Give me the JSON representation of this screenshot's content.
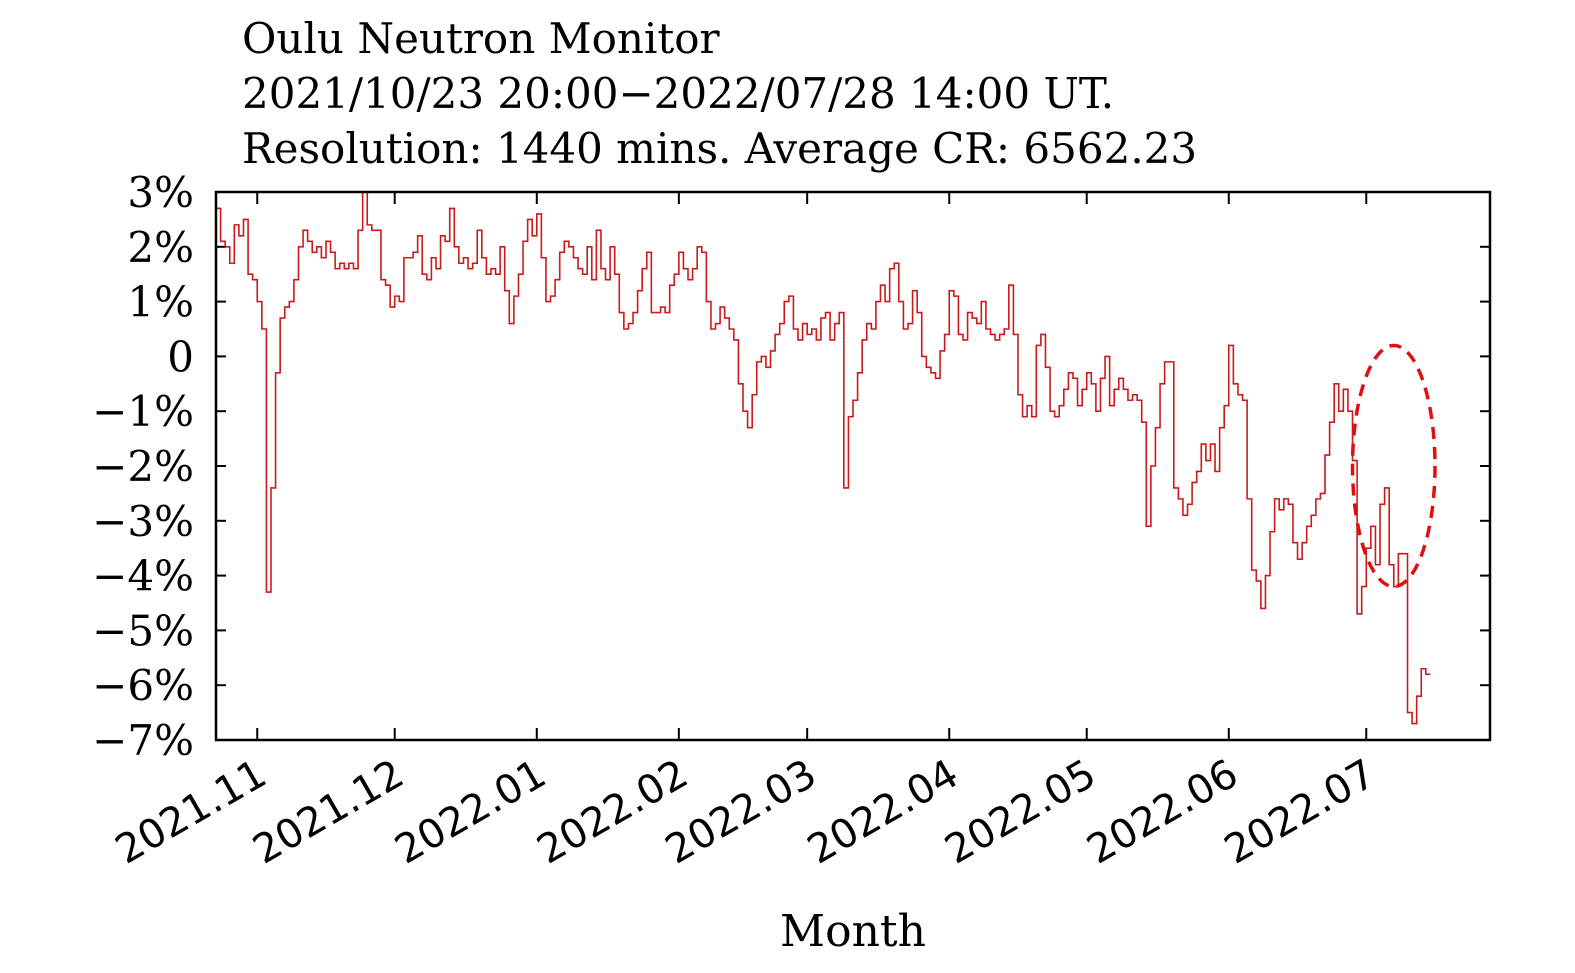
{
  "chart_data": {
    "type": "line",
    "title_lines": [
      "Oulu Neutron Monitor",
      "2021/10/23 20:00−2022/07/28 14:00 UT.",
      "Resolution: 1440 mins. Average CR: 6562.23"
    ],
    "xlabel": "Month",
    "ylabel": "",
    "ylim": [
      -7,
      3
    ],
    "x_range": [
      "2021-10-23",
      "2022-07-28"
    ],
    "yticks": [
      3,
      2,
      1,
      0,
      -1,
      -2,
      -3,
      -4,
      -5,
      -6,
      -7
    ],
    "ytick_labels": [
      "3%",
      "2%",
      "1%",
      "0",
      "−1%",
      "−2%",
      "−3%",
      "−4%",
      "−5%",
      "−6%",
      "−7%"
    ],
    "xticks": [
      {
        "date": "2021-11-01",
        "label": "2021.11"
      },
      {
        "date": "2021-12-01",
        "label": "2021.12"
      },
      {
        "date": "2022-01-01",
        "label": "2022.01"
      },
      {
        "date": "2022-02-01",
        "label": "2022.02"
      },
      {
        "date": "2022-03-01",
        "label": "2022.03"
      },
      {
        "date": "2022-04-01",
        "label": "2022.04"
      },
      {
        "date": "2022-05-01",
        "label": "2022.05"
      },
      {
        "date": "2022-06-01",
        "label": "2022.06"
      },
      {
        "date": "2022-07-01",
        "label": "2022.07"
      }
    ],
    "grid": false,
    "line_color": "#cc1a1a",
    "series": [
      {
        "name": "",
        "points": [
          [
            "2021-10-23",
            2.7
          ],
          [
            "2021-10-24",
            2.1
          ],
          [
            "2021-10-25",
            2.0
          ],
          [
            "2021-10-26",
            1.7
          ],
          [
            "2021-10-27",
            2.4
          ],
          [
            "2021-10-28",
            2.2
          ],
          [
            "2021-10-29",
            2.5
          ],
          [
            "2021-10-30",
            1.5
          ],
          [
            "2021-10-31",
            1.4
          ],
          [
            "2021-11-01",
            1.0
          ],
          [
            "2021-11-02",
            0.5
          ],
          [
            "2021-11-03",
            -4.3
          ],
          [
            "2021-11-04",
            -2.4
          ],
          [
            "2021-11-05",
            -0.3
          ],
          [
            "2021-11-06",
            0.7
          ],
          [
            "2021-11-07",
            0.9
          ],
          [
            "2021-11-08",
            1.0
          ],
          [
            "2021-11-09",
            1.4
          ],
          [
            "2021-11-10",
            2.0
          ],
          [
            "2021-11-11",
            2.3
          ],
          [
            "2021-11-12",
            2.1
          ],
          [
            "2021-11-13",
            1.9
          ],
          [
            "2021-11-14",
            2.0
          ],
          [
            "2021-11-15",
            1.8
          ],
          [
            "2021-11-16",
            2.1
          ],
          [
            "2021-11-17",
            1.9
          ],
          [
            "2021-11-18",
            1.6
          ],
          [
            "2021-11-19",
            1.7
          ],
          [
            "2021-11-20",
            1.6
          ],
          [
            "2021-11-21",
            1.7
          ],
          [
            "2021-11-22",
            1.6
          ],
          [
            "2021-11-23",
            2.3
          ],
          [
            "2021-11-24",
            3.0
          ],
          [
            "2021-11-25",
            2.4
          ],
          [
            "2021-11-26",
            2.3
          ],
          [
            "2021-11-27",
            2.3
          ],
          [
            "2021-11-28",
            1.4
          ],
          [
            "2021-11-29",
            1.3
          ],
          [
            "2021-11-30",
            0.9
          ],
          [
            "2021-12-01",
            1.1
          ],
          [
            "2021-12-02",
            1.0
          ],
          [
            "2021-12-03",
            1.8
          ],
          [
            "2021-12-04",
            1.8
          ],
          [
            "2021-12-05",
            1.9
          ],
          [
            "2021-12-06",
            2.2
          ],
          [
            "2021-12-07",
            1.5
          ],
          [
            "2021-12-08",
            1.4
          ],
          [
            "2021-12-09",
            1.8
          ],
          [
            "2021-12-10",
            1.6
          ],
          [
            "2021-12-11",
            2.2
          ],
          [
            "2021-12-12",
            2.1
          ],
          [
            "2021-12-13",
            2.7
          ],
          [
            "2021-12-14",
            2.0
          ],
          [
            "2021-12-15",
            1.7
          ],
          [
            "2021-12-16",
            1.8
          ],
          [
            "2021-12-17",
            1.6
          ],
          [
            "2021-12-18",
            1.7
          ],
          [
            "2021-12-19",
            2.3
          ],
          [
            "2021-12-20",
            1.8
          ],
          [
            "2021-12-21",
            1.5
          ],
          [
            "2021-12-22",
            1.6
          ],
          [
            "2021-12-23",
            1.5
          ],
          [
            "2021-12-24",
            2.0
          ],
          [
            "2021-12-25",
            1.2
          ],
          [
            "2021-12-26",
            0.6
          ],
          [
            "2021-12-27",
            1.1
          ],
          [
            "2021-12-28",
            1.5
          ],
          [
            "2021-12-29",
            2.1
          ],
          [
            "2021-12-30",
            2.5
          ],
          [
            "2021-12-31",
            2.2
          ],
          [
            "2022-01-01",
            2.6
          ],
          [
            "2022-01-02",
            1.8
          ],
          [
            "2022-01-03",
            1.0
          ],
          [
            "2022-01-04",
            1.1
          ],
          [
            "2022-01-05",
            1.4
          ],
          [
            "2022-01-06",
            1.9
          ],
          [
            "2022-01-07",
            2.1
          ],
          [
            "2022-01-08",
            2.0
          ],
          [
            "2022-01-09",
            1.8
          ],
          [
            "2022-01-10",
            1.6
          ],
          [
            "2022-01-11",
            1.5
          ],
          [
            "2022-01-12",
            2.0
          ],
          [
            "2022-01-13",
            1.4
          ],
          [
            "2022-01-14",
            2.3
          ],
          [
            "2022-01-15",
            1.6
          ],
          [
            "2022-01-16",
            1.4
          ],
          [
            "2022-01-17",
            2.0
          ],
          [
            "2022-01-18",
            1.5
          ],
          [
            "2022-01-19",
            0.8
          ],
          [
            "2022-01-20",
            0.5
          ],
          [
            "2022-01-21",
            0.6
          ],
          [
            "2022-01-22",
            0.8
          ],
          [
            "2022-01-23",
            1.2
          ],
          [
            "2022-01-24",
            1.6
          ],
          [
            "2022-01-25",
            1.9
          ],
          [
            "2022-01-26",
            0.8
          ],
          [
            "2022-01-27",
            0.8
          ],
          [
            "2022-01-28",
            0.9
          ],
          [
            "2022-01-29",
            0.8
          ],
          [
            "2022-01-30",
            1.3
          ],
          [
            "2022-01-31",
            1.5
          ],
          [
            "2022-02-01",
            1.9
          ],
          [
            "2022-02-02",
            1.6
          ],
          [
            "2022-02-03",
            1.4
          ],
          [
            "2022-02-04",
            1.6
          ],
          [
            "2022-02-05",
            2.0
          ],
          [
            "2022-02-06",
            1.9
          ],
          [
            "2022-02-07",
            1.0
          ],
          [
            "2022-02-08",
            0.5
          ],
          [
            "2022-02-09",
            0.6
          ],
          [
            "2022-02-10",
            0.9
          ],
          [
            "2022-02-11",
            0.7
          ],
          [
            "2022-02-12",
            0.5
          ],
          [
            "2022-02-13",
            0.3
          ],
          [
            "2022-02-14",
            -0.5
          ],
          [
            "2022-02-15",
            -1.0
          ],
          [
            "2022-02-16",
            -1.3
          ],
          [
            "2022-02-17",
            -0.7
          ],
          [
            "2022-02-18",
            -0.1
          ],
          [
            "2022-02-19",
            0.0
          ],
          [
            "2022-02-20",
            -0.2
          ],
          [
            "2022-02-21",
            0.1
          ],
          [
            "2022-02-22",
            0.4
          ],
          [
            "2022-02-23",
            0.6
          ],
          [
            "2022-02-24",
            1.0
          ],
          [
            "2022-02-25",
            1.1
          ],
          [
            "2022-02-26",
            0.5
          ],
          [
            "2022-02-27",
            0.3
          ],
          [
            "2022-02-28",
            0.6
          ],
          [
            "2022-03-01",
            0.4
          ],
          [
            "2022-03-02",
            0.5
          ],
          [
            "2022-03-03",
            0.3
          ],
          [
            "2022-03-04",
            0.7
          ],
          [
            "2022-03-05",
            0.8
          ],
          [
            "2022-03-06",
            0.3
          ],
          [
            "2022-03-07",
            0.6
          ],
          [
            "2022-03-08",
            0.8
          ],
          [
            "2022-03-09",
            -2.4
          ],
          [
            "2022-03-10",
            -1.1
          ],
          [
            "2022-03-11",
            -0.8
          ],
          [
            "2022-03-12",
            -0.3
          ],
          [
            "2022-03-13",
            0.3
          ],
          [
            "2022-03-14",
            0.6
          ],
          [
            "2022-03-15",
            0.5
          ],
          [
            "2022-03-16",
            1.0
          ],
          [
            "2022-03-17",
            1.3
          ],
          [
            "2022-03-18",
            1.0
          ],
          [
            "2022-03-19",
            1.6
          ],
          [
            "2022-03-20",
            1.7
          ],
          [
            "2022-03-21",
            1.0
          ],
          [
            "2022-03-22",
            0.5
          ],
          [
            "2022-03-23",
            0.6
          ],
          [
            "2022-03-24",
            1.2
          ],
          [
            "2022-03-25",
            0.8
          ],
          [
            "2022-03-26",
            0.0
          ],
          [
            "2022-03-27",
            -0.2
          ],
          [
            "2022-03-28",
            -0.3
          ],
          [
            "2022-03-29",
            -0.4
          ],
          [
            "2022-03-30",
            0.1
          ],
          [
            "2022-03-31",
            0.4
          ],
          [
            "2022-04-01",
            1.2
          ],
          [
            "2022-04-02",
            1.1
          ],
          [
            "2022-04-03",
            0.4
          ],
          [
            "2022-04-04",
            0.3
          ],
          [
            "2022-04-05",
            0.8
          ],
          [
            "2022-04-06",
            0.7
          ],
          [
            "2022-04-07",
            0.6
          ],
          [
            "2022-04-08",
            1.0
          ],
          [
            "2022-04-09",
            0.5
          ],
          [
            "2022-04-10",
            0.4
          ],
          [
            "2022-04-11",
            0.3
          ],
          [
            "2022-04-12",
            0.4
          ],
          [
            "2022-04-13",
            0.5
          ],
          [
            "2022-04-14",
            1.3
          ],
          [
            "2022-04-15",
            0.4
          ],
          [
            "2022-04-16",
            -0.7
          ],
          [
            "2022-04-17",
            -1.1
          ],
          [
            "2022-04-18",
            -0.9
          ],
          [
            "2022-04-19",
            -1.1
          ],
          [
            "2022-04-20",
            0.2
          ],
          [
            "2022-04-21",
            0.4
          ],
          [
            "2022-04-22",
            -0.2
          ],
          [
            "2022-04-23",
            -1.0
          ],
          [
            "2022-04-24",
            -1.1
          ],
          [
            "2022-04-25",
            -0.9
          ],
          [
            "2022-04-26",
            -0.6
          ],
          [
            "2022-04-27",
            -0.3
          ],
          [
            "2022-04-28",
            -0.4
          ],
          [
            "2022-04-29",
            -0.9
          ],
          [
            "2022-04-30",
            -0.6
          ],
          [
            "2022-05-01",
            -0.3
          ],
          [
            "2022-05-02",
            -0.5
          ],
          [
            "2022-05-03",
            -1.0
          ],
          [
            "2022-05-04",
            -0.4
          ],
          [
            "2022-05-05",
            0.0
          ],
          [
            "2022-05-06",
            -0.9
          ],
          [
            "2022-05-07",
            -0.6
          ],
          [
            "2022-05-08",
            -0.4
          ],
          [
            "2022-05-09",
            -0.6
          ],
          [
            "2022-05-10",
            -0.8
          ],
          [
            "2022-05-11",
            -0.7
          ],
          [
            "2022-05-12",
            -0.8
          ],
          [
            "2022-05-13",
            -1.2
          ],
          [
            "2022-05-14",
            -3.1
          ],
          [
            "2022-05-15",
            -2.0
          ],
          [
            "2022-05-16",
            -1.3
          ],
          [
            "2022-05-17",
            -0.5
          ],
          [
            "2022-05-18",
            -0.1
          ],
          [
            "2022-05-19",
            -0.1
          ],
          [
            "2022-05-20",
            -2.4
          ],
          [
            "2022-05-21",
            -2.6
          ],
          [
            "2022-05-22",
            -2.9
          ],
          [
            "2022-05-23",
            -2.7
          ],
          [
            "2022-05-24",
            -2.3
          ],
          [
            "2022-05-25",
            -2.1
          ],
          [
            "2022-05-26",
            -1.6
          ],
          [
            "2022-05-27",
            -1.9
          ],
          [
            "2022-05-28",
            -1.6
          ],
          [
            "2022-05-29",
            -2.1
          ],
          [
            "2022-05-30",
            -1.3
          ],
          [
            "2022-05-31",
            -0.9
          ],
          [
            "2022-06-01",
            0.2
          ],
          [
            "2022-06-02",
            -0.5
          ],
          [
            "2022-06-03",
            -0.7
          ],
          [
            "2022-06-04",
            -0.8
          ],
          [
            "2022-06-05",
            -2.6
          ],
          [
            "2022-06-06",
            -3.9
          ],
          [
            "2022-06-07",
            -4.1
          ],
          [
            "2022-06-08",
            -4.6
          ],
          [
            "2022-06-09",
            -4.0
          ],
          [
            "2022-06-10",
            -3.2
          ],
          [
            "2022-06-11",
            -2.6
          ],
          [
            "2022-06-12",
            -2.8
          ],
          [
            "2022-06-13",
            -2.6
          ],
          [
            "2022-06-14",
            -2.7
          ],
          [
            "2022-06-15",
            -3.4
          ],
          [
            "2022-06-16",
            -3.7
          ],
          [
            "2022-06-17",
            -3.4
          ],
          [
            "2022-06-18",
            -3.1
          ],
          [
            "2022-06-19",
            -2.9
          ],
          [
            "2022-06-20",
            -2.6
          ],
          [
            "2022-06-21",
            -2.5
          ],
          [
            "2022-06-22",
            -1.8
          ],
          [
            "2022-06-23",
            -1.2
          ],
          [
            "2022-06-24",
            -0.5
          ],
          [
            "2022-06-25",
            -1.0
          ],
          [
            "2022-06-26",
            -0.6
          ],
          [
            "2022-06-27",
            -1.0
          ],
          [
            "2022-06-28",
            -1.9
          ],
          [
            "2022-06-29",
            -4.7
          ],
          [
            "2022-06-30",
            -4.2
          ],
          [
            "2022-07-01",
            -3.5
          ],
          [
            "2022-07-02",
            -3.1
          ],
          [
            "2022-07-03",
            -3.8
          ],
          [
            "2022-07-04",
            -2.7
          ],
          [
            "2022-07-05",
            -2.4
          ],
          [
            "2022-07-06",
            -3.8
          ],
          [
            "2022-07-07",
            -4.2
          ],
          [
            "2022-07-08",
            -3.6
          ],
          [
            "2022-07-09",
            -3.6
          ],
          [
            "2022-07-10",
            -6.5
          ],
          [
            "2022-07-11",
            -6.7
          ],
          [
            "2022-07-12",
            -6.2
          ],
          [
            "2022-07-13",
            -5.7
          ],
          [
            "2022-07-14",
            -5.8
          ]
        ]
      }
    ],
    "annotations": [
      {
        "type": "dashed-ellipse",
        "color": "#dd1111",
        "x_range": [
          "2022-06-28",
          "2022-07-16"
        ],
        "y_range": [
          -4.2,
          0.2
        ]
      }
    ]
  }
}
